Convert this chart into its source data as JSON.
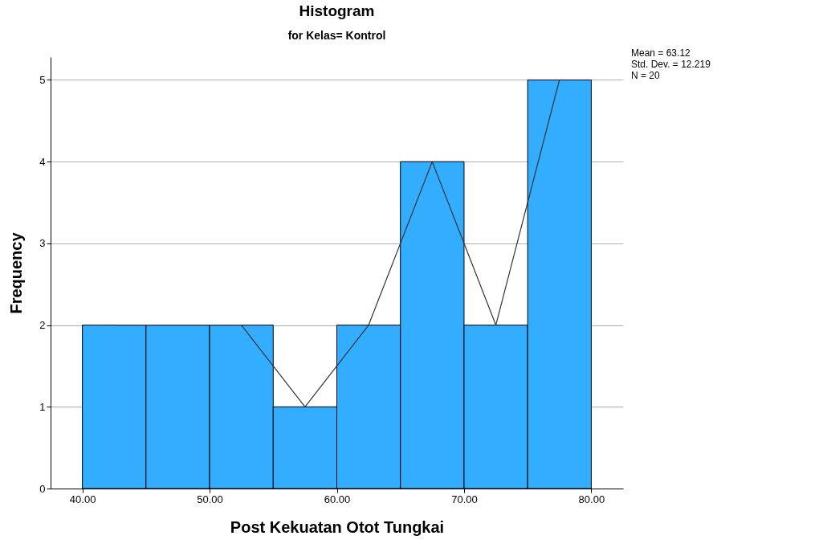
{
  "chart_data": {
    "type": "histogram",
    "title": "Histogram",
    "subtitle": "for Kelas= Kontrol",
    "xlabel": "Post Kekuatan Otot Tungkai",
    "ylabel": "Frequency",
    "bins": [
      40,
      45,
      50,
      55,
      60,
      65,
      70,
      75,
      80
    ],
    "values": [
      2,
      2,
      2,
      1,
      2,
      4,
      2,
      5
    ],
    "color": "#33adff",
    "series": [
      {
        "type": "line",
        "color": "#333333",
        "x": [
          42.5,
          47.5,
          52.5,
          57.5,
          62.5,
          67.5,
          72.5,
          77.5
        ],
        "values": [
          2,
          2,
          2,
          1,
          2,
          4,
          2,
          5
        ]
      }
    ],
    "xlim": [
      37.5,
      82.5
    ],
    "xticks": [
      {
        "value": 40,
        "label": "40.00"
      },
      {
        "value": 50,
        "label": "50.00"
      },
      {
        "value": 60,
        "label": "60.00"
      },
      {
        "value": 70,
        "label": "70.00"
      },
      {
        "value": 80,
        "label": "80.00"
      }
    ],
    "ylim": [
      0,
      5.28
    ],
    "yticks": [
      0,
      1,
      2,
      3,
      4,
      5
    ],
    "grid": "y",
    "annotations": [
      "Mean = 63.12",
      "Std. Dev. = 12.219",
      "N = 20"
    ]
  }
}
